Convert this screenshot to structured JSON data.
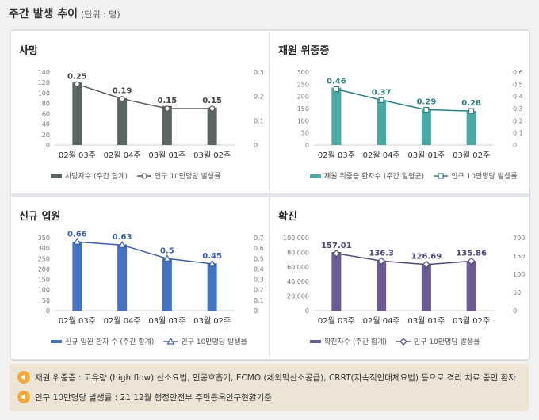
{
  "page": {
    "title": "주간 발생 추이",
    "unit": "(단위 : 명)"
  },
  "notes": [
    "재원 위중증 : 고유량 (high flow) 산소요법, 인공호흡기, ECMO (체외막산소공급), CRRT(지속적인대체요법) 등으로 격리 치료 중인 환자",
    "인구 10만명당 발생률 : 21.12월 행정안전부 주민등록인구현황기준"
  ],
  "chart_data": [
    {
      "type": "bar",
      "title": "사망",
      "color": "#5b6663",
      "line_color": "#5a5a5a",
      "marker": "circle",
      "categories": [
        "02월 03주",
        "02월 04주",
        "03월 01주",
        "03월 02주"
      ],
      "series": [
        {
          "name": "사망자수 (주간 합계)",
          "type": "bar",
          "values": [
            120,
            90,
            75,
            72
          ]
        },
        {
          "name": "인구 10만명당 발생률",
          "type": "line",
          "axis": "right",
          "values": [
            0.25,
            0.19,
            0.15,
            0.15
          ]
        }
      ],
      "data_labels": [
        "0.25",
        "0.19",
        "0.15",
        "0.15"
      ],
      "ylim": [
        0,
        140
      ],
      "y_ticks": [
        "0",
        "20",
        "40",
        "60",
        "80",
        "100",
        "120",
        "140"
      ],
      "y2lim": [
        0,
        0.3
      ],
      "y2_ticks": [
        "0",
        "0.1",
        "0.2",
        "0.3"
      ],
      "legend_position": "bottom"
    },
    {
      "type": "bar",
      "title": "재원 위중증",
      "color": "#4aa9a4",
      "line_color": "#2d7f84",
      "marker": "square",
      "categories": [
        "02월 03주",
        "02월 04주",
        "03월 01주",
        "03월 02주"
      ],
      "series": [
        {
          "name": "재원 위중증 환자수 (주간 일평균)",
          "type": "bar",
          "values": [
            236,
            186,
            145,
            140
          ]
        },
        {
          "name": "인구 10만명당 발생률",
          "type": "line",
          "axis": "right",
          "values": [
            0.46,
            0.37,
            0.29,
            0.28
          ]
        }
      ],
      "data_labels": [
        "0.46",
        "0.37",
        "0.29",
        "0.28"
      ],
      "ylim": [
        0,
        300
      ],
      "y_ticks": [
        "0",
        "50",
        "100",
        "150",
        "200",
        "250",
        "300"
      ],
      "y2lim": [
        0,
        0.6
      ],
      "y2_ticks": [
        "0",
        "0.1",
        "0.2",
        "0.3",
        "0.4",
        "0.5",
        "0.6"
      ],
      "legend_position": "bottom"
    },
    {
      "type": "bar",
      "title": "신규 입원",
      "color": "#4472c4",
      "line_color": "#3a5fad",
      "marker": "triangle",
      "categories": [
        "02월 03주",
        "02월 04주",
        "03월 01주",
        "03월 02주"
      ],
      "series": [
        {
          "name": "신규 입원 환자 수 (주간 합계)",
          "type": "bar",
          "values": [
            331,
            318,
            252,
            228
          ]
        },
        {
          "name": "인구 10만명당 발생률",
          "type": "line",
          "axis": "right",
          "values": [
            0.66,
            0.63,
            0.5,
            0.45
          ]
        }
      ],
      "data_labels": [
        "0.66",
        "0.63",
        "0.5",
        "0.45"
      ],
      "ylim": [
        0,
        350
      ],
      "y_ticks": [
        "0",
        "50",
        "100",
        "150",
        "200",
        "250",
        "300",
        "350"
      ],
      "y2lim": [
        0,
        0.7
      ],
      "y2_ticks": [
        "0",
        "0.1",
        "0.2",
        "0.3",
        "0.4",
        "0.5",
        "0.6",
        "0.7"
      ],
      "legend_position": "bottom"
    },
    {
      "type": "bar",
      "title": "확진",
      "color": "#6b5b95",
      "line_color": "#55487a",
      "marker": "diamond",
      "categories": [
        "02월 03주",
        "02월 04주",
        "03월 01주",
        "03월 02주"
      ],
      "series": [
        {
          "name": "확진자수 (주간 합계)",
          "type": "bar",
          "values": [
            80500,
            68700,
            63800,
            68400
          ]
        },
        {
          "name": "인구 10만명당 발생률",
          "type": "line",
          "axis": "right",
          "values": [
            157.01,
            136.3,
            126.69,
            135.86
          ]
        }
      ],
      "data_labels": [
        "157.01",
        "136.3",
        "126.69",
        "135.86"
      ],
      "ylim": [
        0,
        100000
      ],
      "y_ticks": [
        "0",
        "20,000",
        "40,000",
        "60,000",
        "80,000",
        "100,000"
      ],
      "y2lim": [
        0,
        200
      ],
      "y2_ticks": [
        "0",
        "50",
        "100",
        "150",
        "200"
      ],
      "legend_position": "bottom"
    }
  ]
}
